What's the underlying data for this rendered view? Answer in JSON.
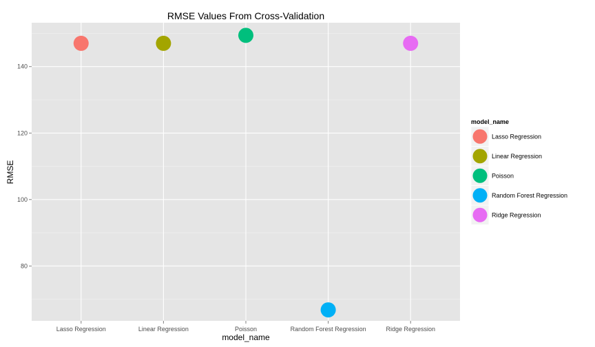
{
  "chart_data": {
    "type": "scatter",
    "title": "RMSE Values From Cross-Validation",
    "xlabel": "model_name",
    "ylabel": "RMSE",
    "categories": [
      "Lasso Regression",
      "Linear Regression",
      "Poisson",
      "Random Forest Regression",
      "Ridge Regression"
    ],
    "values": [
      147.0,
      147.0,
      149.4,
      66.8,
      147.0
    ],
    "ylim": [
      63.5,
      153.2
    ],
    "yticks": [
      80,
      100,
      120,
      140
    ],
    "grid": true,
    "legend": {
      "title": "model_name",
      "placement": "right",
      "entries": [
        "Lasso Regression",
        "Linear Regression",
        "Poisson",
        "Random Forest Regression",
        "Ridge Regression"
      ]
    },
    "colors": [
      "#F8766D",
      "#A3A500",
      "#00BF7D",
      "#00B0F6",
      "#E76BF3"
    ]
  }
}
